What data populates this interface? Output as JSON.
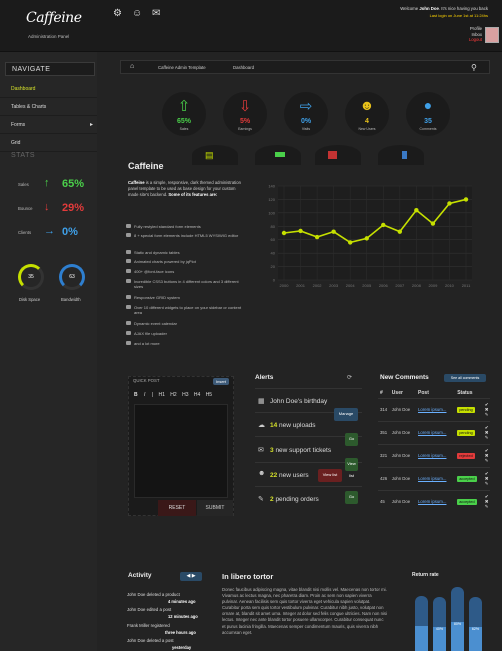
{
  "header": {
    "logo": "Caffeine",
    "subtitle": "Administration Panel",
    "welcome_prefix": "Welcome",
    "welcome_name": "John Doe",
    "welcome_suffix": ". It's nice having you back",
    "last_login": "Last login on June 1st at 11:24hs",
    "profile": "Profile",
    "inbox": "Inbox",
    "logout": "Logout",
    "icons": [
      "gear-icon",
      "users-icon",
      "mail-icon"
    ]
  },
  "sidebar": {
    "nav_title": "NAVIGATE",
    "items": [
      {
        "label": "Dashboard",
        "active": true
      },
      {
        "label": "Tables & Charts"
      },
      {
        "label": "Forms",
        "has_submenu": true
      },
      {
        "label": "Grid"
      }
    ],
    "stats_title": "STATS",
    "stats": [
      {
        "label": "Sales",
        "value": "65%",
        "direction": "up",
        "color": "#4ad04a"
      },
      {
        "label": "Bounce",
        "value": "29%",
        "direction": "down",
        "color": "#e23b3b"
      },
      {
        "label": "Clients",
        "value": "0%",
        "direction": "flat",
        "color": "#3fa0e8"
      }
    ],
    "rings": [
      {
        "value": "35",
        "label": "Disk Space",
        "color": "#c6e000"
      },
      {
        "value": "63",
        "label": "Bandwidth",
        "color": "#2e7fd0"
      }
    ]
  },
  "breadcrumb": {
    "home_icon": "home-icon",
    "items": [
      "Caffeine Admin Template",
      "Dashboard"
    ],
    "search_icon": "search-icon"
  },
  "stat_circles": [
    {
      "value": "65%",
      "label": "Sales",
      "color": "#4ad04a",
      "icon": "arrow-up-icon"
    },
    {
      "value": "5%",
      "label": "Earnings",
      "color": "#e23b3b",
      "icon": "arrow-down-icon"
    },
    {
      "value": "0%",
      "label": "Visits",
      "color": "#3fa0e8",
      "icon": "arrow-right-icon"
    },
    {
      "value": "4",
      "label": "New Users",
      "color": "#e8c11a",
      "icon": "users-icon"
    },
    {
      "value": "35",
      "label": "Comments",
      "color": "#3fa0e8",
      "icon": "comments-icon"
    }
  ],
  "intro": {
    "title": "Caffeine",
    "brand": "Caffeine",
    "text": "is a simple, responsive, dark themed administration panel template to be used as base design for your custom made site's backend.",
    "features_lead": "Some of its features are:",
    "features": [
      "Fully restyled standard form elements",
      "8 + special form elements include HTML5 WYSIWIG editor",
      "Static and dynamic tables",
      "Animated charts powered by jqPlot",
      "400+ @font-face icons",
      "Incredible CSS3 buttons in 4 different colors and 3 different sizes",
      "Responsive GRID system",
      "Over 10 different widgets to place on your sidebar or content area",
      "Dynamic event calendar",
      "AJAX file uploader",
      "and a lot more"
    ]
  },
  "chart_data": {
    "type": "line",
    "x": [
      "2000",
      "2001",
      "2002",
      "2003",
      "2004",
      "2005",
      "2006",
      "2007",
      "2008",
      "2009",
      "2010",
      "2011"
    ],
    "series": [
      {
        "values": [
          70,
          73,
          64,
          72,
          56,
          62,
          82,
          72,
          104,
          84,
          114,
          120
        ]
      }
    ],
    "ylim": [
      0,
      140
    ],
    "yticks": [
      "0",
      "20",
      "40",
      "60",
      "80",
      "100",
      "120",
      "140"
    ],
    "grid": true,
    "line_color": "#c6e000"
  },
  "quick_post": {
    "title": "QUICK POST",
    "insert": "Insert",
    "toolbar": [
      "B",
      "I",
      "|",
      "H1",
      "H2",
      "H3",
      "H4",
      "H5"
    ],
    "reset": "RESET",
    "submit": "SUBMIT"
  },
  "alerts": {
    "title": "Alerts",
    "items": [
      {
        "icon": "calendar-icon",
        "count": "",
        "text": "John Doe's birthday",
        "button": "",
        "button_color": ""
      },
      {
        "icon": "cloud-upload-icon",
        "count": "14",
        "text": "new uploads",
        "button": "Manage",
        "button_color": "#2a4a66"
      },
      {
        "icon": "speech-icon",
        "count": "3",
        "text": "new support tickets",
        "button": "Go",
        "button_color": "#2d5a2d"
      },
      {
        "icon": "users-icon",
        "count": "22",
        "text": "new users",
        "button": "View list",
        "button_color": "#6a2020"
      },
      {
        "icon": "edit-icon",
        "count": "2",
        "text": "pending orders",
        "button": "Go",
        "button_color": "#2d5a2d"
      }
    ]
  },
  "comments": {
    "title": "New Comments",
    "see_all": "See all comments",
    "columns": [
      "#",
      "User",
      "Post",
      "Status"
    ],
    "rows": [
      {
        "id": "314",
        "user": "John Doe",
        "post": "Lorem ipsum...",
        "status": "pending",
        "status_color": "#c6e000"
      },
      {
        "id": "351",
        "user": "John Doe",
        "post": "Lorem ipsum...",
        "status": "pending",
        "status_color": "#c6e000"
      },
      {
        "id": "321",
        "user": "John Doe",
        "post": "Lorem ipsum...",
        "status": "rejected",
        "status_color": "#e23b3b"
      },
      {
        "id": "426",
        "user": "John Doe",
        "post": "Lorem ipsum...",
        "status": "accepted",
        "status_color": "#4ad04a"
      },
      {
        "id": "45",
        "user": "John Doe",
        "post": "Lorem ipsum...",
        "status": "accepted",
        "status_color": "#4ad04a"
      }
    ]
  },
  "activity": {
    "title": "Activity",
    "items": [
      {
        "text": "John Doe deleted a product",
        "time": "4 minutes ago"
      },
      {
        "text": "John Doe edited a post",
        "time": "12 minutes ago"
      },
      {
        "text": "Frank Miller registered",
        "time": "three hours ago"
      },
      {
        "text": "John Doe deleted a post",
        "time": "yesterday"
      }
    ]
  },
  "article": {
    "title": "In libero tortor",
    "text": "Donec faucibus adipiscing magna, vitae blandit nisi mollis vel. Maecenas non tortor mi. Vivamus ac lectus magna, nec pharetra diam. Proin ac sem non sapien viverra pulvinar. Aenean facilisis sem quis tortor viverra eget vehicula sapien volutpat. Curabitur porta sem quis tortor vestibulum pulvinar. Curabitur nibh justo, volutpat non ornare at, blandit sit amet urna. Integer at dolor sed felis congue ultricies. Nam non nisi lectus. Integer nec ante blandit tortor posuere ullamcorper. Curabitur consequat nunc et purus lacinia fringilla. Maecenas semper condimentum mauris, quis viverra nibh accumsan eget."
  },
  "return_rate": {
    "title": "Return rate",
    "bars": [
      {
        "value": 0.82,
        "label": ""
      },
      {
        "value": 0.8,
        "label": "40%"
      },
      {
        "value": 0.95,
        "label": "80%"
      },
      {
        "value": 0.8,
        "label": "62%"
      }
    ]
  }
}
